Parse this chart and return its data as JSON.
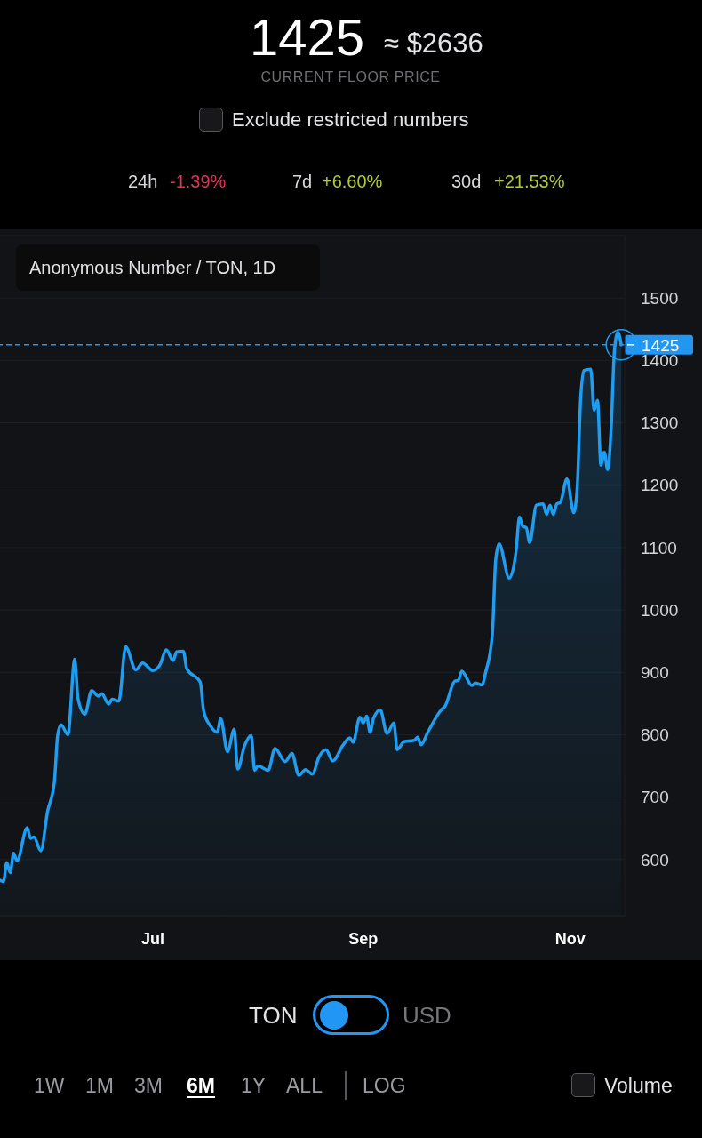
{
  "chart_data": {
    "type": "area",
    "title": "1425",
    "subtitle": "CURRENT FLOOR PRICE",
    "annotations": [
      "≈ $2636",
      "Exclude restricted numbers",
      "24h",
      "-1.39%",
      "7d",
      "+6.60%",
      "30d",
      "+21.53%",
      "Anonymous Number / TON, 1D",
      "TON",
      "USD",
      "1W",
      "1M",
      "3M",
      "6M",
      "1Y",
      "ALL",
      "LOG",
      "Volume"
    ],
    "x": [
      "--05-17",
      "--05-18",
      "--05-19",
      "--05-20",
      "--05-21",
      "--05-22",
      "--05-25",
      "--05-26",
      "--05-27",
      "--05-29",
      "--05-31",
      "--06-02",
      "--06-03",
      "--06-04",
      "--06-06",
      "--06-08",
      "--06-09",
      "--06-11",
      "--06-13",
      "--06-15",
      "--06-16",
      "--06-18",
      "--06-19",
      "--06-21",
      "--06-23",
      "--06-26",
      "--06-28",
      "--07-01",
      "--07-03",
      "--07-05",
      "--07-07",
      "--07-08",
      "--07-10",
      "--07-11",
      "--07-15",
      "--07-16",
      "--07-18",
      "--07-20",
      "--07-21",
      "--07-23",
      "--07-25",
      "--07-26",
      "--07-28",
      "--07-30",
      "--07-31",
      "--08-01",
      "--08-04",
      "--08-06",
      "--08-09",
      "--08-11",
      "--08-13",
      "--08-15",
      "--08-17",
      "--08-19",
      "--08-21",
      "--08-23",
      "--08-26",
      "--08-28",
      "--08-29",
      "--08-31",
      "--09-01",
      "--09-02",
      "--09-03",
      "--09-04",
      "--09-06",
      "--09-08",
      "--09-10",
      "--09-11",
      "--09-13",
      "--09-16",
      "--09-17",
      "--09-18",
      "--09-20",
      "--09-24",
      "--09-25",
      "--09-28",
      "--09-29",
      "--09-30",
      "--10-03",
      "--10-04",
      "--10-06",
      "--10-07",
      "--10-09",
      "--10-10",
      "--10-11",
      "--10-14",
      "--10-16",
      "--10-17",
      "--10-18",
      "--10-19",
      "--10-20",
      "--10-22",
      "--10-24",
      "--10-25",
      "--10-26",
      "--10-27",
      "--10-28",
      "--10-29",
      "--10-31",
      "--11-02",
      "--11-03",
      "--11-04",
      "--11-05",
      "--11-07",
      "--11-08",
      "--11-09",
      "--11-10",
      "--11-11",
      "--11-12",
      "--11-13",
      "--11-14",
      "--11-15",
      "--11-16"
    ],
    "series": [
      {
        "color": "#1e9df1",
        "values": [
          567,
          565,
          595,
          579,
          610,
          598,
          651,
          634,
          636,
          614,
          677,
          724,
          800,
          816,
          800,
          921,
          857,
          833,
          871,
          862,
          866,
          849,
          857,
          854,
          941,
          904,
          915,
          903,
          911,
          936,
          919,
          933,
          934,
          906,
          884,
          838,
          814,
          804,
          826,
          773,
          809,
          745,
          782,
          799,
          743,
          750,
          743,
          778,
          757,
          770,
          735,
          744,
          737,
          765,
          776,
          758,
          783,
          795,
          788,
          828,
          819,
          830,
          804,
          826,
          840,
          802,
          819,
          776,
          789,
          791,
          796,
          784,
          804,
          840,
          845,
          886,
          887,
          902,
          879,
          883,
          880,
          899,
          960,
          1080,
          1106,
          1051,
          1094,
          1149,
          1134,
          1132,
          1108,
          1168,
          1170,
          1153,
          1168,
          1153,
          1170,
          1172,
          1210,
          1156,
          1194,
          1336,
          1384,
          1386,
          1320,
          1336,
          1232,
          1253,
          1225,
          1289,
          1417,
          1445,
          1425
        ]
      }
    ],
    "xlim": [
      "--05-17",
      "--11-17"
    ],
    "xticks": [
      {
        "value": "--07-01",
        "label": "Jul"
      },
      {
        "value": "--09-01",
        "label": "Sep"
      },
      {
        "value": "--11-01",
        "label": "Nov"
      }
    ],
    "ylim": [
      510,
      1600
    ],
    "yticks": [
      600,
      700,
      800,
      900,
      1000,
      1100,
      1200,
      1300,
      1400,
      1500
    ],
    "grid": "y",
    "ref_lines": [
      {
        "axis": "y",
        "value": 1425,
        "label": "1425",
        "color": "#2196f3",
        "line_style": "dashed"
      }
    ]
  }
}
